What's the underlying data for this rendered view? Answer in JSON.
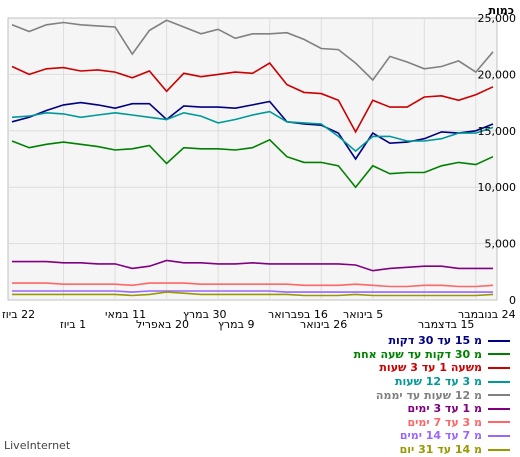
{
  "chart_data": {
    "type": "line",
    "ylabel": "כמות",
    "ylim": [
      0,
      25000
    ],
    "yticks": [
      0,
      5000,
      10000,
      15000,
      20000,
      25000
    ],
    "ytick_labels": [
      "0",
      "5,000",
      "10,000",
      "15,000",
      "20,000",
      "25,000"
    ],
    "xtick_labels_row1": [
      "22 ביוז",
      "11 במאי",
      "30 במרץ",
      "16 בפברואר",
      "5 בינואר",
      "24 בנובמבר"
    ],
    "xtick_labels_row2": [
      "1 ביוז",
      "20 באפריל",
      "9 במרץ",
      "26 בינואר",
      "15 בדצמבר"
    ],
    "grid": true,
    "legend": "bottom-right",
    "series": [
      {
        "name": "מ 15 עד 30 דקות",
        "color": "#000080",
        "values": [
          15800,
          16200,
          16800,
          17300,
          17500,
          17300,
          17000,
          17400,
          17400,
          16000,
          17200,
          17100,
          17100,
          17000,
          17300,
          17600,
          15800,
          15600,
          15500,
          14800,
          12500,
          14800,
          13900,
          14000,
          14300,
          14900,
          14800,
          15000,
          15600
        ]
      },
      {
        "name": "מ 30 דקות עד שעה אחת",
        "color": "#008000",
        "values": [
          14100,
          13500,
          13800,
          14000,
          13800,
          13600,
          13300,
          13400,
          13700,
          12100,
          13500,
          13400,
          13400,
          13300,
          13500,
          14200,
          12700,
          12200,
          12200,
          11900,
          10000,
          11900,
          11200,
          11300,
          11300,
          11900,
          12200,
          12000,
          12700
        ]
      },
      {
        "name": "משעה 1 עד 3 שעות",
        "color": "#cc0000",
        "values": [
          20700,
          20000,
          20500,
          20600,
          20300,
          20400,
          20200,
          19700,
          20300,
          18500,
          20100,
          19800,
          20000,
          20200,
          20100,
          21000,
          19100,
          18400,
          18300,
          17700,
          14900,
          17700,
          17100,
          17100,
          18000,
          18100,
          17700,
          18200,
          18900
        ]
      },
      {
        "name": "מ 3 עד 12 שעות",
        "color": "#009999",
        "values": [
          16200,
          16300,
          16600,
          16500,
          16200,
          16400,
          16600,
          16400,
          16200,
          16000,
          16600,
          16300,
          15700,
          16000,
          16400,
          16700,
          15800,
          15700,
          15600,
          14500,
          13200,
          14500,
          14500,
          14100,
          14100,
          14300,
          14800,
          14800,
          15300
        ]
      },
      {
        "name": "מ 12 שעות עד יממה",
        "color": "#808080",
        "values": [
          24400,
          23800,
          24400,
          24600,
          24400,
          24300,
          24200,
          21800,
          23900,
          24800,
          24200,
          23600,
          24000,
          23200,
          23600,
          23600,
          23700,
          23100,
          22300,
          22200,
          21000,
          19500,
          21600,
          21100,
          20500,
          20700,
          21200,
          20200,
          22000
        ]
      },
      {
        "name": "מ 1 עד 3 ימים",
        "color": "#800080",
        "values": [
          3400,
          3400,
          3400,
          3300,
          3300,
          3200,
          3200,
          2800,
          3000,
          3500,
          3300,
          3300,
          3200,
          3200,
          3300,
          3200,
          3200,
          3200,
          3200,
          3200,
          3100,
          2600,
          2800,
          2900,
          3000,
          3000,
          2800,
          2800,
          2800
        ]
      },
      {
        "name": "מ 3 עד 7 ימים",
        "color": "#ff6666",
        "values": [
          1500,
          1500,
          1500,
          1400,
          1400,
          1400,
          1400,
          1300,
          1500,
          1500,
          1500,
          1400,
          1400,
          1400,
          1400,
          1400,
          1400,
          1300,
          1300,
          1300,
          1400,
          1300,
          1200,
          1200,
          1300,
          1300,
          1200,
          1200,
          1300
        ]
      },
      {
        "name": "מ 7 עד 14 ימים",
        "color": "#9966ff",
        "values": [
          800,
          800,
          800,
          800,
          800,
          800,
          800,
          700,
          800,
          800,
          800,
          800,
          800,
          800,
          800,
          800,
          700,
          700,
          700,
          700,
          700,
          700,
          700,
          700,
          700,
          700,
          700,
          700,
          700
        ]
      },
      {
        "name": "מ 14 עד 31 יום",
        "color": "#999900",
        "values": [
          500,
          500,
          500,
          500,
          500,
          500,
          500,
          400,
          500,
          700,
          600,
          500,
          500,
          500,
          500,
          500,
          500,
          400,
          400,
          400,
          500,
          400,
          400,
          400,
          400,
          400,
          400,
          400,
          500
        ]
      }
    ]
  },
  "footer": {
    "brand": "LiveInternet"
  }
}
